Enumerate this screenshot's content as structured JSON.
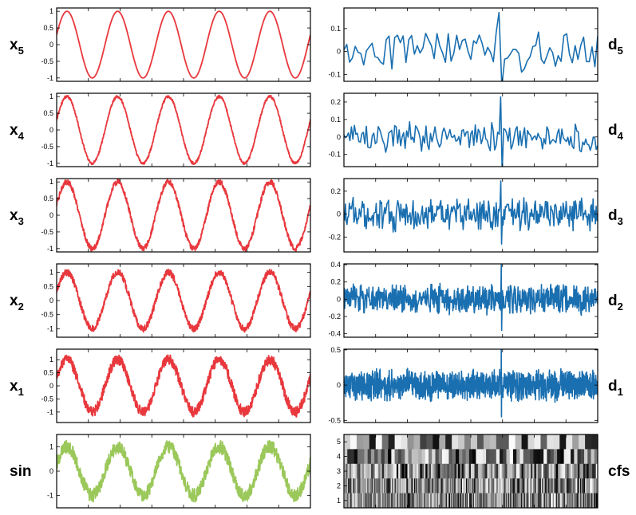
{
  "colors": {
    "approx": "#e8383d",
    "detail": "#1a6fb0",
    "signal": "#9bc85a",
    "frame": "#000000"
  },
  "chart_data": [
    {
      "id": "x5",
      "type": "line",
      "column": "left",
      "row": 0,
      "label": {
        "base": "x",
        "sub": "5"
      },
      "ylim": [
        -1.1,
        1.1
      ],
      "yticks": [
        {
          "v": 1,
          "t": "1"
        },
        {
          "v": 0.5,
          "t": "0.5"
        },
        {
          "v": 0,
          "t": "0"
        },
        {
          "v": -0.5,
          "t": "-0.5"
        },
        {
          "v": -1,
          "t": "-1"
        }
      ],
      "signal": {
        "kind": "sine",
        "cycles": 5,
        "phase": 0.3,
        "noise": 0.0,
        "color_key": "approx"
      }
    },
    {
      "id": "x4",
      "type": "line",
      "column": "left",
      "row": 1,
      "label": {
        "base": "x",
        "sub": "4"
      },
      "ylim": [
        -1.1,
        1.1
      ],
      "yticks": [
        {
          "v": 1,
          "t": "1"
        },
        {
          "v": 0.5,
          "t": "0.5"
        },
        {
          "v": 0,
          "t": "0"
        },
        {
          "v": -0.5,
          "t": "-0.5"
        },
        {
          "v": -1,
          "t": "-1"
        }
      ],
      "signal": {
        "kind": "sine",
        "cycles": 5,
        "phase": 0.3,
        "noise": 0.04,
        "color_key": "approx"
      }
    },
    {
      "id": "x3",
      "type": "line",
      "column": "left",
      "row": 2,
      "label": {
        "base": "x",
        "sub": "3"
      },
      "ylim": [
        -1.1,
        1.1
      ],
      "yticks": [
        {
          "v": 1,
          "t": "1"
        },
        {
          "v": 0.5,
          "t": "0.5"
        },
        {
          "v": 0,
          "t": "0"
        },
        {
          "v": -0.5,
          "t": "-0.5"
        },
        {
          "v": -1,
          "t": "-1"
        }
      ],
      "signal": {
        "kind": "sine",
        "cycles": 5,
        "phase": 0.3,
        "noise": 0.08,
        "color_key": "approx"
      }
    },
    {
      "id": "x2",
      "type": "line",
      "column": "left",
      "row": 3,
      "label": {
        "base": "x",
        "sub": "2"
      },
      "ylim": [
        -1.3,
        1.3
      ],
      "yticks": [
        {
          "v": 1,
          "t": "1"
        },
        {
          "v": 0.5,
          "t": "0.5"
        },
        {
          "v": 0,
          "t": "0"
        },
        {
          "v": -0.5,
          "t": "-0.5"
        },
        {
          "v": -1,
          "t": "-1"
        }
      ],
      "signal": {
        "kind": "sine",
        "cycles": 5,
        "phase": 0.3,
        "noise": 0.12,
        "color_key": "approx"
      }
    },
    {
      "id": "x1",
      "type": "line",
      "column": "left",
      "row": 4,
      "label": {
        "base": "x",
        "sub": "1"
      },
      "ylim": [
        -1.4,
        1.4
      ],
      "yticks": [
        {
          "v": 1,
          "t": "1"
        },
        {
          "v": 0.5,
          "t": "0.5"
        },
        {
          "v": 0,
          "t": "0"
        },
        {
          "v": -0.5,
          "t": "-0.5"
        },
        {
          "v": -1,
          "t": "-1"
        }
      ],
      "signal": {
        "kind": "sine",
        "cycles": 5,
        "phase": 0.3,
        "noise": 0.2,
        "color_key": "approx"
      }
    },
    {
      "id": "sin",
      "type": "line",
      "column": "left",
      "row": 5,
      "label": {
        "base": "sin",
        "sub": ""
      },
      "ylim": [
        -1.5,
        1.5
      ],
      "yticks": [
        {
          "v": 1,
          "t": "1"
        },
        {
          "v": 0,
          "t": "0"
        },
        {
          "v": -1,
          "t": "-1"
        }
      ],
      "signal": {
        "kind": "sine",
        "cycles": 5,
        "phase": 0.3,
        "noise": 0.28,
        "color_key": "signal"
      }
    },
    {
      "id": "d5",
      "type": "line",
      "column": "right",
      "row": 0,
      "label": {
        "base": "d",
        "sub": "5"
      },
      "ylim": [
        -0.13,
        0.19
      ],
      "yticks": [
        {
          "v": 0.1,
          "t": "0.1"
        },
        {
          "v": 0,
          "t": "0"
        },
        {
          "v": -0.1,
          "t": "-0.1"
        }
      ],
      "signal": {
        "kind": "detail",
        "amp": 0.07,
        "points": 90,
        "spike": 0.17,
        "color_key": "detail"
      }
    },
    {
      "id": "d4",
      "type": "line",
      "column": "right",
      "row": 1,
      "label": {
        "base": "d",
        "sub": "4"
      },
      "ylim": [
        -0.17,
        0.25
      ],
      "yticks": [
        {
          "v": 0.2,
          "t": "0.2"
        },
        {
          "v": 0.1,
          "t": "0.1"
        },
        {
          "v": 0,
          "t": "0"
        },
        {
          "v": -0.1,
          "t": "-0.1"
        }
      ],
      "signal": {
        "kind": "detail",
        "amp": 0.07,
        "points": 170,
        "spike": 0.23,
        "color_key": "detail"
      }
    },
    {
      "id": "d3",
      "type": "line",
      "column": "right",
      "row": 2,
      "label": {
        "base": "d",
        "sub": "3"
      },
      "ylim": [
        -0.33,
        0.31
      ],
      "yticks": [
        {
          "v": 0.2,
          "t": "0.2"
        },
        {
          "v": 0,
          "t": "0"
        },
        {
          "v": -0.2,
          "t": "-0.2"
        }
      ],
      "signal": {
        "kind": "detail",
        "amp": 0.12,
        "points": 330,
        "spike": 0.29,
        "color_key": "detail"
      }
    },
    {
      "id": "d2",
      "type": "line",
      "column": "right",
      "row": 3,
      "label": {
        "base": "d",
        "sub": "2"
      },
      "ylim": [
        -0.44,
        0.41
      ],
      "yticks": [
        {
          "v": 0.4,
          "t": "0.4"
        },
        {
          "v": 0.2,
          "t": "0.2"
        },
        {
          "v": 0,
          "t": "0"
        },
        {
          "v": -0.2,
          "t": "-0.2"
        },
        {
          "v": -0.4,
          "t": "-0.4"
        }
      ],
      "signal": {
        "kind": "detail",
        "amp": 0.14,
        "points": 650,
        "spike": 0.4,
        "color_key": "detail"
      }
    },
    {
      "id": "d1",
      "type": "line",
      "column": "right",
      "row": 4,
      "label": {
        "base": "d",
        "sub": "1"
      },
      "ylim": [
        -0.53,
        0.51
      ],
      "yticks": [
        {
          "v": 0.5,
          "t": "0.5"
        },
        {
          "v": 0,
          "t": "0"
        },
        {
          "v": -0.5,
          "t": "-0.5"
        }
      ],
      "signal": {
        "kind": "detail",
        "amp": 0.18,
        "points": 1200,
        "spike": 0.5,
        "color_key": "detail"
      }
    },
    {
      "id": "cfs",
      "type": "heatmap",
      "column": "right",
      "row": 5,
      "label": {
        "base": "cfs",
        "sub": ""
      },
      "rows": [
        {
          "level": 5,
          "t": "5",
          "count": 40
        },
        {
          "level": 4,
          "t": "4",
          "count": 75
        },
        {
          "level": 3,
          "t": "3",
          "count": 140
        },
        {
          "level": 2,
          "t": "2",
          "count": 260
        },
        {
          "level": 1,
          "t": "1",
          "count": 480
        }
      ],
      "colormap": "gray"
    }
  ]
}
